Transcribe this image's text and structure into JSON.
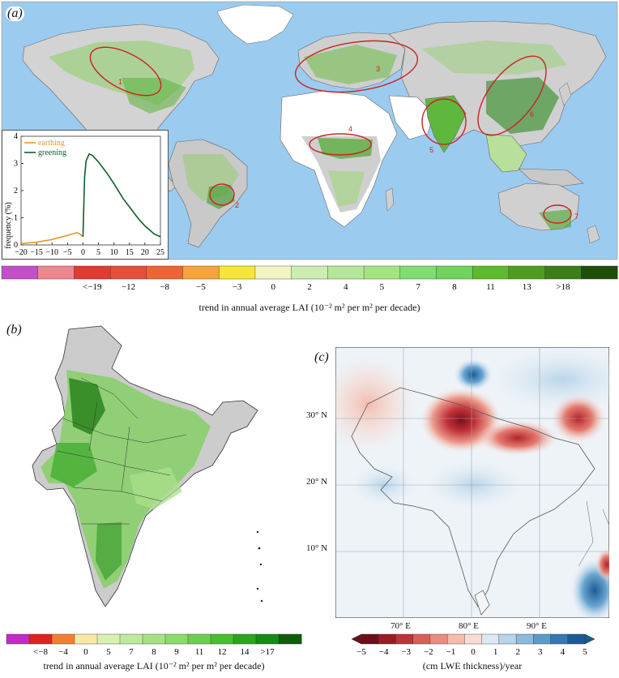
{
  "panel_a": {
    "label": "(a)",
    "inset": {
      "legend": [
        {
          "name": "earthing",
          "color": "#e8952b"
        },
        {
          "name": "greening",
          "color": "#0d5e2a"
        }
      ],
      "ylabel": "frequency (%)",
      "xticks": [
        "−20",
        "−15",
        "−10",
        "−5",
        "0",
        "5",
        "10",
        "15",
        "20",
        "25"
      ],
      "yticks": [
        "0",
        "1",
        "2",
        "3",
        "4"
      ],
      "xlim": [
        -20,
        25
      ],
      "ylim": [
        0,
        4
      ],
      "earthing_curve": [
        [
          -20,
          0.05
        ],
        [
          -15,
          0.1
        ],
        [
          -10,
          0.2
        ],
        [
          -5,
          0.35
        ],
        [
          -2,
          0.45
        ],
        [
          -1,
          0.4
        ],
        [
          0,
          0.3
        ]
      ],
      "greening_curve": [
        [
          0,
          0.3
        ],
        [
          0.5,
          2.5
        ],
        [
          1,
          3.1
        ],
        [
          2,
          3.35
        ],
        [
          3,
          3.3
        ],
        [
          5,
          3.05
        ],
        [
          8,
          2.6
        ],
        [
          10,
          2.25
        ],
        [
          13,
          1.7
        ],
        [
          15,
          1.4
        ],
        [
          18,
          0.95
        ],
        [
          20,
          0.7
        ],
        [
          23,
          0.4
        ],
        [
          25,
          0.3
        ]
      ]
    },
    "region_labels": [
      "1",
      "2",
      "3",
      "4",
      "5",
      "6",
      "7"
    ],
    "colorbar": {
      "colors": [
        "#c24fc9",
        "#ee8890",
        "#e23b32",
        "#e64f3c",
        "#ee6535",
        "#f5a53b",
        "#f8e53a",
        "#f3f5c0",
        "#cdecb1",
        "#b5e79a",
        "#a2e57f",
        "#7fdd71",
        "#6fd35e",
        "#5cbb2c",
        "#4e9d20",
        "#3a7f18",
        "#1f4e09"
      ],
      "labels": [
        "<−19",
        "−12",
        "−8",
        "−5",
        "−3",
        "0",
        "2",
        "4",
        "5",
        "7",
        "8",
        "11",
        "13",
        ">18"
      ],
      "caption": "trend in annual average LAI (10⁻² m² per m² per decade)"
    }
  },
  "panel_b": {
    "label": "(b)",
    "colorbar": {
      "colors": [
        "#c629c4",
        "#e4201f",
        "#f47f34",
        "#f8e8a6",
        "#d8f0b1",
        "#bfe99c",
        "#a6e285",
        "#8bda6e",
        "#6ccd52",
        "#4bbd34",
        "#2da41f",
        "#178b15",
        "#0c5e07"
      ],
      "labels": [
        "<−8",
        "−4",
        "0",
        "5",
        "7",
        "8",
        "9",
        "11",
        "12",
        "14",
        ">17"
      ],
      "caption": "trend in annual average LAI (10⁻² m² per m² per decade)"
    }
  },
  "panel_c": {
    "label": "(c)",
    "lat_labels": [
      "30° N",
      "20° N",
      "10° N"
    ],
    "lon_labels": [
      "70° E",
      "80° E",
      "90° E"
    ],
    "colorbar": {
      "colors": [
        "#6b0f1a",
        "#9b1b24",
        "#c0323a",
        "#d95e5a",
        "#e98d82",
        "#f3bcae",
        "#f8ddd2",
        "#dce9f3",
        "#b8d5ea",
        "#8bbadc",
        "#5b9bc9",
        "#3679b1",
        "#1c5a93"
      ],
      "labels": [
        "−5",
        "−4",
        "−3",
        "−2",
        "−1",
        "0",
        "1",
        "2",
        "3",
        "4",
        "5"
      ],
      "caption": "(cm LWE thickness)/year"
    }
  }
}
